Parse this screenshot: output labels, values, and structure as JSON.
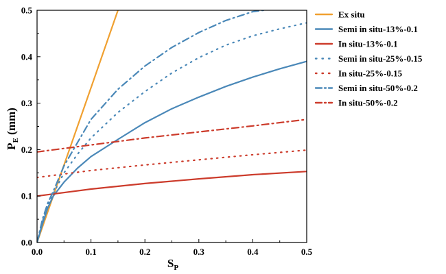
{
  "chart_data": {
    "type": "line",
    "xlabel": "S",
    "xlabel_sub": "P",
    "ylabel": "P",
    "ylabel_sub": "E",
    "ylabel_unit": "(mm)",
    "xlim": [
      0.0,
      0.5
    ],
    "ylim": [
      0.0,
      0.5
    ],
    "x_ticks": [
      "0.0",
      "0.1",
      "0.2",
      "0.3",
      "0.4",
      "0.5"
    ],
    "y_ticks": [
      "0.0",
      "0.1",
      "0.2",
      "0.3",
      "0.4",
      "0.5"
    ],
    "grid": false,
    "legend_position": "right",
    "series": [
      {
        "name": "Ex situ",
        "color": "#F0A030",
        "dash": "solid",
        "x": [
          0.0,
          0.05,
          0.1,
          0.15
        ],
        "y": [
          0.0,
          0.167,
          0.333,
          0.5
        ]
      },
      {
        "name": "Semi in situ-13%-0.1",
        "color": "#4A88B8",
        "dash": "solid",
        "x": [
          0.0,
          0.01,
          0.02,
          0.03,
          0.05,
          0.075,
          0.1,
          0.15,
          0.2,
          0.25,
          0.3,
          0.35,
          0.4,
          0.45,
          0.5
        ],
        "y": [
          0.0,
          0.04,
          0.075,
          0.1,
          0.13,
          0.16,
          0.185,
          0.222,
          0.258,
          0.288,
          0.313,
          0.336,
          0.356,
          0.374,
          0.39
        ]
      },
      {
        "name": "In situ-13%-0.1",
        "color": "#CC3B2B",
        "dash": "solid",
        "x": [
          0.0,
          0.1,
          0.2,
          0.3,
          0.4,
          0.5
        ],
        "y": [
          0.1,
          0.115,
          0.127,
          0.137,
          0.146,
          0.153
        ]
      },
      {
        "name": "Semi in situ-25%-0.15",
        "color": "#4A88B8",
        "dash": "dotted",
        "x": [
          0.0,
          0.01,
          0.02,
          0.03,
          0.05,
          0.075,
          0.1,
          0.15,
          0.2,
          0.25,
          0.3,
          0.35,
          0.4,
          0.45,
          0.5
        ],
        "y": [
          0.0,
          0.045,
          0.08,
          0.105,
          0.15,
          0.19,
          0.225,
          0.28,
          0.325,
          0.365,
          0.398,
          0.425,
          0.445,
          0.46,
          0.473
        ]
      },
      {
        "name": "In situ-25%-0.15",
        "color": "#CC3B2B",
        "dash": "dotted",
        "x": [
          0.0,
          0.1,
          0.2,
          0.3,
          0.4,
          0.5
        ],
        "y": [
          0.14,
          0.155,
          0.167,
          0.178,
          0.189,
          0.199
        ]
      },
      {
        "name": "Semi in situ-50%-0.2",
        "color": "#4A88B8",
        "dash": "dashdot",
        "x": [
          0.0,
          0.01,
          0.02,
          0.03,
          0.05,
          0.075,
          0.1,
          0.15,
          0.2,
          0.25,
          0.3,
          0.35,
          0.4,
          0.42
        ],
        "y": [
          0.0,
          0.05,
          0.085,
          0.11,
          0.165,
          0.215,
          0.265,
          0.33,
          0.38,
          0.42,
          0.452,
          0.478,
          0.497,
          0.5
        ]
      },
      {
        "name": "In situ-50%-0.2",
        "color": "#CC3B2B",
        "dash": "dashdot",
        "x": [
          0.0,
          0.1,
          0.2,
          0.3,
          0.4,
          0.5
        ],
        "y": [
          0.195,
          0.21,
          0.225,
          0.238,
          0.251,
          0.265
        ]
      }
    ]
  }
}
